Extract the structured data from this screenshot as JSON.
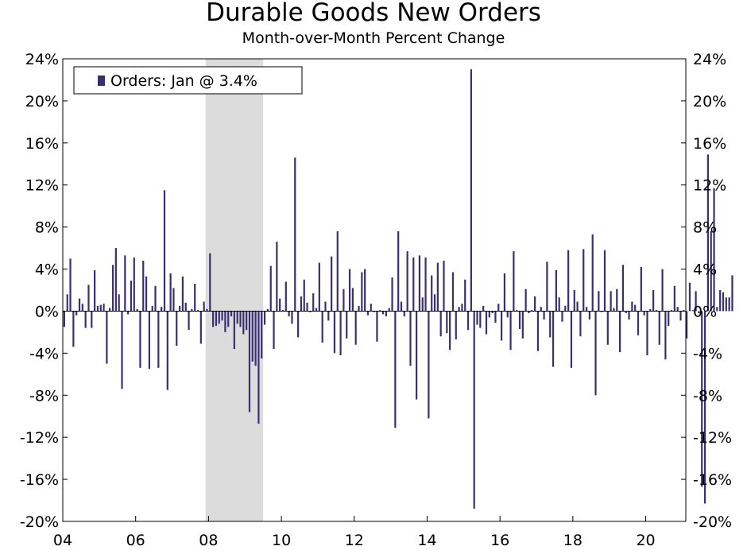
{
  "chart_data": {
    "type": "bar",
    "title": "Durable Goods New Orders",
    "subtitle": "Month-over-Month Percent Change",
    "xlabel": "",
    "ylabel": "",
    "ylim": [
      -20,
      24
    ],
    "yticks": [
      24,
      20,
      16,
      12,
      8,
      4,
      0,
      -4,
      -8,
      -12,
      -16,
      -20
    ],
    "ytick_suffix": "%",
    "xlim": [
      2004.0,
      2021.1
    ],
    "xticks": [
      {
        "value": 2004,
        "label": "04"
      },
      {
        "value": 2006,
        "label": "06"
      },
      {
        "value": 2008,
        "label": "08"
      },
      {
        "value": 2010,
        "label": "10"
      },
      {
        "value": 2012,
        "label": "12"
      },
      {
        "value": 2014,
        "label": "14"
      },
      {
        "value": 2016,
        "label": "16"
      },
      {
        "value": 2018,
        "label": "18"
      },
      {
        "value": 2020,
        "label": "20"
      }
    ],
    "recession_band": {
      "start": 2007.92,
      "end": 2009.5
    },
    "legend": {
      "position": "top-left",
      "label": "Orders: Jan @ 3.4%"
    },
    "grid": false,
    "colors": {
      "bar": "#3b2f72",
      "recession": "#dcdcdc",
      "axis": "#000000"
    },
    "series": [
      {
        "start": "2004-01",
        "values": [
          -1.5,
          1.6,
          5.0,
          -3.4,
          -0.4,
          1.2,
          0.7,
          -1.6,
          2.5,
          -1.6,
          3.9,
          0.5,
          0.6,
          0.7,
          -5.0,
          0.3,
          4.4,
          6.0,
          1.6,
          -7.4,
          5.3,
          -0.3,
          2.9,
          5.1,
          0.2,
          -5.4,
          4.8,
          3.3,
          -5.5,
          0.5,
          2.4,
          -5.4,
          0.4,
          11.5,
          -7.5,
          3.6,
          2.2,
          -3.3,
          0.5,
          3.3,
          0.8,
          -1.8,
          0.2,
          2.6,
          0.1,
          -3.1,
          0.9,
          0.2,
          5.5,
          -1.5,
          -1.4,
          -1.2,
          -0.9,
          -2.0,
          -1.5,
          -0.5,
          -3.6,
          -1.2,
          -1.5,
          -2.2,
          -1.8,
          -9.6,
          -4.8,
          -5.2,
          -10.7,
          -4.5,
          -1.3,
          0.2,
          4.3,
          -3.6,
          6.6,
          1.2,
          0.1,
          2.8,
          -0.5,
          -1.2,
          14.6,
          -2.5,
          1.4,
          3.0,
          0.8,
          -0.1,
          1.7,
          0.3,
          4.6,
          -3.0,
          0.9,
          -0.9,
          5.2,
          -4.0,
          7.6,
          -4.2,
          2.1,
          -2.6,
          4.0,
          2.2,
          -3.2,
          0.5,
          3.7,
          4.0,
          -0.4,
          0.7,
          -0.1,
          -2.9,
          0.1,
          -0.3,
          -0.5,
          0.3,
          3.2,
          -11.1,
          7.6,
          0.9,
          -0.5,
          5.7,
          -5.2,
          5.1,
          -8.4,
          5.3,
          1.3,
          5.1,
          -10.2,
          3.4,
          1.6,
          4.6,
          -2.4,
          4.8,
          -2.1,
          -3.7,
          3.7,
          -2.7,
          0.4,
          0.7,
          3.0,
          -1.8,
          23.0,
          -18.8,
          -1.3,
          -1.6,
          0.5,
          -2.2,
          -0.6,
          -0.2,
          -1.1,
          0.7,
          -2.8,
          3.6,
          -0.6,
          -3.7,
          5.7,
          0.1,
          -1.7,
          -2.6,
          2.1,
          -0.2,
          0.1,
          1.4,
          -3.8,
          0.4,
          -0.8,
          4.7,
          -2.5,
          -5.3,
          3.9,
          1.3,
          -1.0,
          0.5,
          5.8,
          -5.4,
          2.0,
          0.9,
          -2.4,
          5.9,
          0.4,
          -0.8,
          7.3,
          -8.0,
          1.9,
          -0.1,
          5.8,
          -3.2,
          1.9,
          0.3,
          2.1,
          -3.9,
          4.4,
          -0.2,
          -0.8,
          0.9,
          0.6,
          -2.3,
          4.2,
          -0.4,
          -4.2,
          0.2,
          2.0,
          0.1,
          -3.2,
          4.0,
          -4.6,
          -1.4,
          0.1,
          2.4,
          0.4,
          -0.9,
          0.1,
          -2.6,
          2.7,
          0.1,
          1.9,
          -0.2,
          -16.7,
          -18.3,
          14.9,
          7.6,
          11.7,
          0.4,
          2.0,
          1.8,
          1.3,
          1.3,
          3.4
        ]
      }
    ]
  }
}
